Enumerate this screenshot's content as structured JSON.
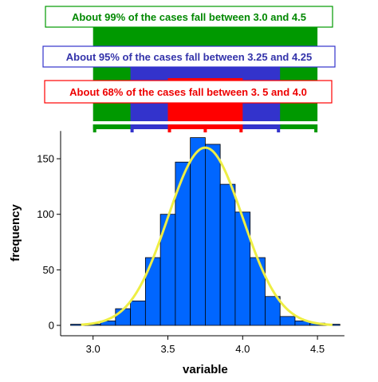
{
  "chart_data": {
    "type": "bar",
    "xlabel": "variable",
    "ylabel": "frequency",
    "xlim": [
      2.8,
      4.68
    ],
    "ylim": [
      0,
      175
    ],
    "xticks": [
      {
        "value": 3.0,
        "label": "3.0"
      },
      {
        "value": 3.5,
        "label": "3.5"
      },
      {
        "value": 4.0,
        "label": "4.0"
      },
      {
        "value": 4.5,
        "label": "4.5"
      }
    ],
    "yticks": [
      {
        "value": 0,
        "label": "0"
      },
      {
        "value": 50,
        "label": "50"
      },
      {
        "value": 100,
        "label": "100"
      },
      {
        "value": 150,
        "label": "150"
      }
    ],
    "bin_width": 0.1,
    "bins": [
      {
        "x0": 2.85,
        "value": 1
      },
      {
        "x0": 2.95,
        "value": 1
      },
      {
        "x0": 3.05,
        "value": 4
      },
      {
        "x0": 3.15,
        "value": 15
      },
      {
        "x0": 3.25,
        "value": 22
      },
      {
        "x0": 3.35,
        "value": 61
      },
      {
        "x0": 3.45,
        "value": 100
      },
      {
        "x0": 3.55,
        "value": 147
      },
      {
        "x0": 3.65,
        "value": 169
      },
      {
        "x0": 3.75,
        "value": 163
      },
      {
        "x0": 3.85,
        "value": 127
      },
      {
        "x0": 3.95,
        "value": 102
      },
      {
        "x0": 4.05,
        "value": 61
      },
      {
        "x0": 4.15,
        "value": 26
      },
      {
        "x0": 4.25,
        "value": 8
      },
      {
        "x0": 4.35,
        "value": 4
      },
      {
        "x0": 4.45,
        "value": 2
      },
      {
        "x0": 4.55,
        "value": 1
      }
    ],
    "normal_curve": {
      "mean": 3.75,
      "sd": 0.25,
      "peak": 160
    },
    "bands": [
      {
        "label": "About 99% of the cases fall between 3.0 and 4.5",
        "from": 3.0,
        "to": 4.5,
        "color": "#009900",
        "text_color": "#008800"
      },
      {
        "label": "About 95% of the cases fall between 3.25 and 4.25",
        "from": 3.25,
        "to": 4.25,
        "color": "#3333cc",
        "text_color": "#3333aa"
      },
      {
        "label": "About 68% of the cases fall between 3. 5 and 4.0",
        "from": 3.5,
        "to": 4.0,
        "color": "#ff0000",
        "text_color": "#ee0000"
      }
    ],
    "colors": {
      "bar": "#0066ff",
      "bar_edge": "#000000",
      "curve": "#eeee44",
      "axis": "#000000"
    },
    "grid": false
  }
}
